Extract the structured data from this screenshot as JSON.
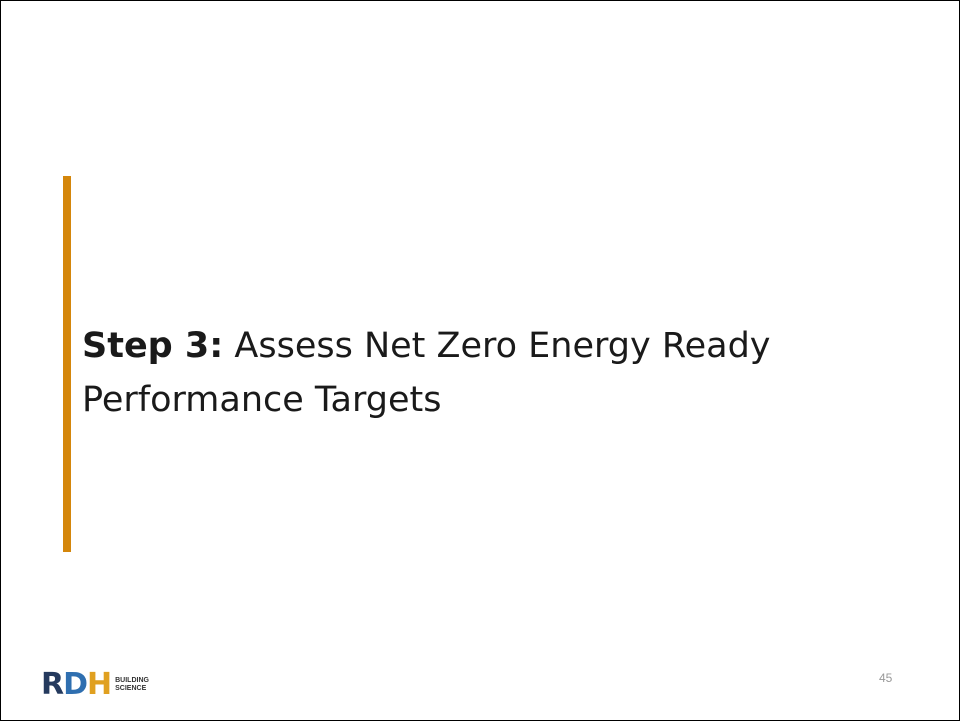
{
  "slide": {
    "title": {
      "lead": "Step 3:",
      "text": "Assess Net Zero Energy Ready Performance Targets"
    },
    "logo": {
      "letters": [
        "R",
        "D",
        "H"
      ],
      "words": [
        "BUILDING",
        "SCIENCE"
      ]
    },
    "page_number": "45"
  }
}
